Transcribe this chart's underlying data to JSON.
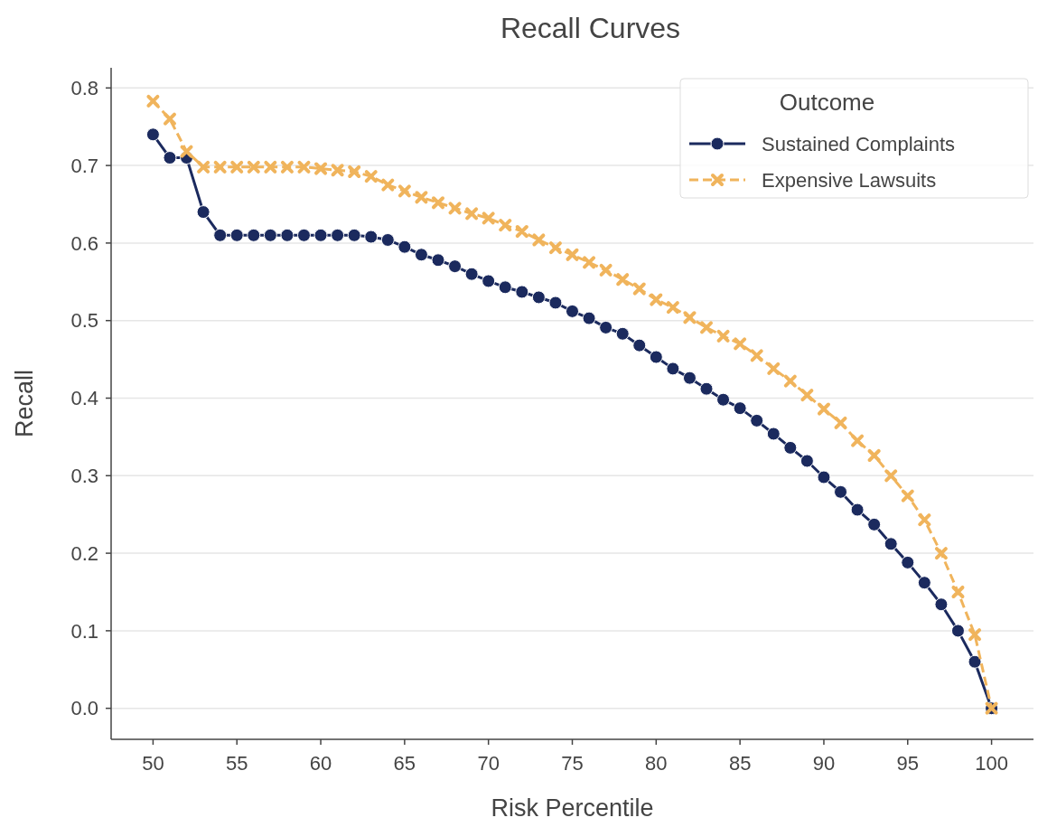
{
  "chart_data": {
    "type": "line",
    "title": "Recall Curves",
    "xlabel": "Risk Percentile",
    "ylabel": "Recall",
    "legend_title": "Outcome",
    "x": [
      50,
      51,
      52,
      53,
      54,
      55,
      56,
      57,
      58,
      59,
      60,
      61,
      62,
      63,
      64,
      65,
      66,
      67,
      68,
      69,
      70,
      71,
      72,
      73,
      74,
      75,
      76,
      77,
      78,
      79,
      80,
      81,
      82,
      83,
      84,
      85,
      86,
      87,
      88,
      89,
      90,
      91,
      92,
      93,
      94,
      95,
      96,
      97,
      98,
      99,
      100
    ],
    "series": [
      {
        "name": "Sustained Complaints",
        "color": "#1b2a5e",
        "marker": "circle",
        "line_style": "solid",
        "values": [
          0.74,
          0.71,
          0.71,
          0.64,
          0.61,
          0.61,
          0.61,
          0.61,
          0.61,
          0.61,
          0.61,
          0.61,
          0.61,
          0.608,
          0.604,
          0.595,
          0.585,
          0.578,
          0.57,
          0.56,
          0.551,
          0.543,
          0.537,
          0.53,
          0.523,
          0.512,
          0.503,
          0.491,
          0.483,
          0.468,
          0.453,
          0.438,
          0.426,
          0.412,
          0.398,
          0.387,
          0.371,
          0.354,
          0.336,
          0.319,
          0.298,
          0.279,
          0.256,
          0.237,
          0.212,
          0.188,
          0.162,
          0.134,
          0.1,
          0.06,
          0.0
        ]
      },
      {
        "name": "Expensive Lawsuits",
        "color": "#f0b45c",
        "marker": "cross",
        "line_style": "dashed",
        "values": [
          0.783,
          0.76,
          0.718,
          0.698,
          0.698,
          0.698,
          0.698,
          0.698,
          0.698,
          0.698,
          0.696,
          0.694,
          0.692,
          0.686,
          0.675,
          0.667,
          0.659,
          0.652,
          0.645,
          0.638,
          0.632,
          0.623,
          0.615,
          0.604,
          0.594,
          0.585,
          0.575,
          0.565,
          0.553,
          0.541,
          0.527,
          0.517,
          0.504,
          0.491,
          0.48,
          0.47,
          0.455,
          0.438,
          0.422,
          0.404,
          0.386,
          0.368,
          0.345,
          0.326,
          0.3,
          0.274,
          0.243,
          0.2,
          0.15,
          0.095,
          0.0
        ]
      }
    ],
    "xlim": [
      47.5,
      102.5
    ],
    "xticks": [
      50,
      55,
      60,
      65,
      70,
      75,
      80,
      85,
      90,
      95,
      100
    ],
    "ylim": [
      -0.04,
      0.826
    ],
    "yticks": [
      {
        "value": 0,
        "label": "0.0"
      },
      0.1,
      0.2,
      0.3,
      0.4,
      0.5,
      0.6,
      0.7,
      0.8
    ],
    "grid": "y",
    "legend": "top right"
  }
}
